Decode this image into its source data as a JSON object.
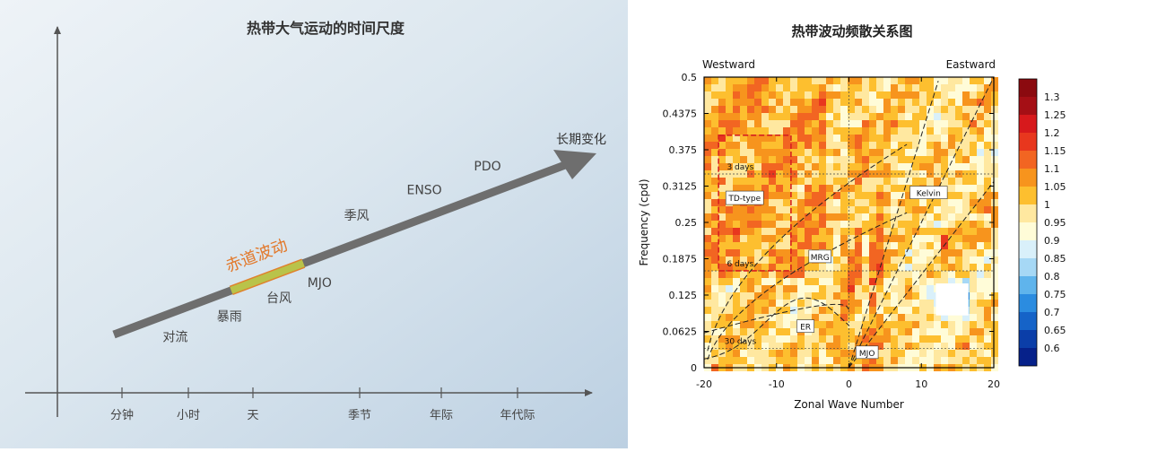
{
  "chart_data": [
    {
      "type": "diagram",
      "title": "热带大气运动的时间尺度",
      "x_ticks": [
        "分钟",
        "小时",
        "天",
        "季节",
        "年际",
        "年代际"
      ],
      "arrow_label": "长期变化",
      "highlight_label": "赤道波动",
      "phenomena": [
        {
          "label": "对流",
          "t": 0.12,
          "side": "below"
        },
        {
          "label": "暴雨",
          "t": 0.24,
          "side": "below"
        },
        {
          "label": "台风",
          "t": 0.35,
          "side": "below"
        },
        {
          "label": "MJO",
          "t": 0.44,
          "side": "below"
        },
        {
          "label": "季风",
          "t": 0.55,
          "side": "above"
        },
        {
          "label": "ENSO",
          "t": 0.7,
          "side": "above"
        },
        {
          "label": "PDO",
          "t": 0.84,
          "side": "above"
        }
      ],
      "highlight_range": [
        0.26,
        0.42
      ]
    },
    {
      "type": "heatmap",
      "title": "热带波动频散关系图",
      "xlabel": "Zonal Wave Number",
      "ylabel": "Frequency (cpd)",
      "left_header": "Westward",
      "right_header": "Eastward",
      "xlim": [
        -20,
        20
      ],
      "ylim": [
        0,
        0.5
      ],
      "x_ticks": [
        "-20",
        "-10",
        "0",
        "10",
        "20"
      ],
      "y_ticks": [
        "0",
        "0.0625",
        "0.125",
        "0.1875",
        "0.25",
        "0.3125",
        "0.375",
        "0.4375",
        "0.5"
      ],
      "colorbar": {
        "ticks": [
          "1.3",
          "1.25",
          "1.2",
          "1.15",
          "1.1",
          "1.05",
          "1",
          "0.95",
          "0.9",
          "0.85",
          "0.8",
          "0.75",
          "0.7",
          "0.65",
          "0.6"
        ],
        "colors": [
          "#a50f15",
          "#d7191c",
          "#e8371e",
          "#f26522",
          "#f7941d",
          "#fdbf2f",
          "#ffe8a0",
          "#fffcd8",
          "#d9f0fa",
          "#a6d8f5",
          "#5fb4ec",
          "#2b8ce0",
          "#1563c8",
          "#0b3ea8",
          "#06218a"
        ]
      },
      "reference_lines": [
        {
          "label": "3 days",
          "frequency": 0.3333
        },
        {
          "label": "6 days",
          "frequency": 0.1667
        },
        {
          "label": "30 days",
          "frequency": 0.0333
        }
      ],
      "box_label": "TD-type",
      "box": {
        "k": [
          -18,
          -8
        ],
        "f": [
          0.1667,
          0.4
        ]
      },
      "wave_labels": [
        {
          "label": "Kelvin",
          "k": 11,
          "f": 0.3
        },
        {
          "label": "MRG",
          "k": -4,
          "f": 0.19
        },
        {
          "label": "ER",
          "k": -6,
          "f": 0.07
        },
        {
          "label": "MJO",
          "k": 2.5,
          "f": 0.025
        }
      ]
    }
  ]
}
